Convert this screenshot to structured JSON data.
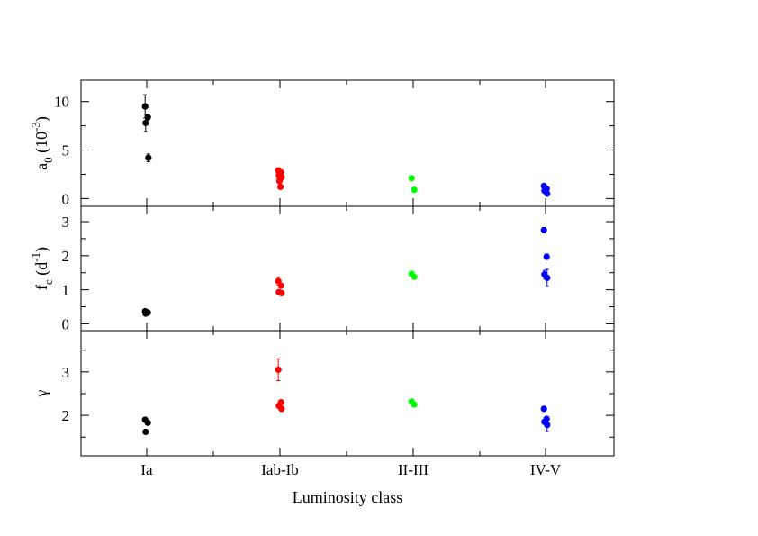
{
  "chart_data": [
    {
      "type": "scatter",
      "id": "a0",
      "ylabel": {
        "base": "a",
        "sub": "0",
        "unit_prefix": " (10",
        "unit_sup": "-3",
        "unit_suffix": ")"
      },
      "ylim": [
        -0.8,
        12.2
      ],
      "yticks_major": [
        0,
        5,
        10
      ],
      "yticks_minor": [
        2.5,
        7.5
      ],
      "series": [
        {
          "category": "Ia",
          "color": "#000000",
          "points": [
            {
              "y": 9.5,
              "err": 1.2
            },
            {
              "y": 8.4,
              "err": 0.3
            },
            {
              "y": 7.8,
              "err": 0.9
            },
            {
              "y": 4.2,
              "err": 0.4
            }
          ]
        },
        {
          "category": "Iab-Ib",
          "color": "#ff0000",
          "points": [
            {
              "y": 2.9,
              "err": 0.1
            },
            {
              "y": 2.7,
              "err": 0.1
            },
            {
              "y": 2.4,
              "err": 0.1
            },
            {
              "y": 2.2,
              "err": 0.1
            },
            {
              "y": 2.0,
              "err": 0.1
            },
            {
              "y": 1.8,
              "err": 0.1
            },
            {
              "y": 1.2,
              "err": 0.1
            }
          ]
        },
        {
          "category": "II-III",
          "color": "#00ff00",
          "points": [
            {
              "y": 2.1,
              "err": 0.1
            },
            {
              "y": 0.9,
              "err": 0.1
            }
          ]
        },
        {
          "category": "IV-V",
          "color": "#0000ff",
          "points": [
            {
              "y": 1.3,
              "err": 0.1
            },
            {
              "y": 1.0,
              "err": 0.1
            },
            {
              "y": 0.8,
              "err": 0.1
            },
            {
              "y": 0.5,
              "err": 0.1
            }
          ]
        }
      ]
    },
    {
      "type": "scatter",
      "id": "fc",
      "ylabel": {
        "base": "f",
        "sub": "c",
        "unit_prefix": " (d",
        "unit_sup": "-1",
        "unit_suffix": ")"
      },
      "ylim": [
        -0.2,
        3.45
      ],
      "yticks_major": [
        0,
        1,
        2,
        3
      ],
      "yticks_minor": [
        0.5,
        1.5,
        2.5
      ],
      "series": [
        {
          "category": "Ia",
          "color": "#000000",
          "points": [
            {
              "y": 0.37,
              "err": 0.05
            },
            {
              "y": 0.33,
              "err": 0.05
            },
            {
              "y": 0.3,
              "err": 0.05
            }
          ]
        },
        {
          "category": "Iab-Ib",
          "color": "#ff0000",
          "points": [
            {
              "y": 1.25,
              "err": 0.12
            },
            {
              "y": 1.12,
              "err": 0.05
            },
            {
              "y": 0.93,
              "err": 0.05
            },
            {
              "y": 0.9,
              "err": 0.05
            }
          ]
        },
        {
          "category": "II-III",
          "color": "#00ff00",
          "points": [
            {
              "y": 1.47,
              "err": 0.05
            },
            {
              "y": 1.38,
              "err": 0.05
            }
          ]
        },
        {
          "category": "IV-V",
          "color": "#0000ff",
          "points": [
            {
              "y": 2.75,
              "err": 0.08
            },
            {
              "y": 1.97,
              "err": 0.08
            },
            {
              "y": 1.45,
              "err": 0.12
            },
            {
              "y": 1.35,
              "err": 0.25
            }
          ]
        }
      ]
    },
    {
      "type": "scatter",
      "id": "gamma",
      "ylabel": {
        "base": "γ"
      },
      "ylim": [
        1.07,
        3.95
      ],
      "yticks_major": [
        2,
        3
      ],
      "yticks_minor": [
        1.5,
        2.5,
        3.5
      ],
      "series": [
        {
          "category": "Ia",
          "color": "#000000",
          "points": [
            {
              "y": 1.9,
              "err": 0.03
            },
            {
              "y": 1.83,
              "err": 0.03
            },
            {
              "y": 1.62,
              "err": 0.03
            }
          ]
        },
        {
          "category": "Iab-Ib",
          "color": "#ff0000",
          "points": [
            {
              "y": 3.05,
              "err": 0.25
            },
            {
              "y": 2.3,
              "err": 0.05
            },
            {
              "y": 2.22,
              "err": 0.05
            },
            {
              "y": 2.15,
              "err": 0.05
            }
          ]
        },
        {
          "category": "II-III",
          "color": "#00ff00",
          "points": [
            {
              "y": 2.32,
              "err": 0.04
            },
            {
              "y": 2.25,
              "err": 0.04
            }
          ]
        },
        {
          "category": "IV-V",
          "color": "#0000ff",
          "points": [
            {
              "y": 2.15,
              "err": 0.04
            },
            {
              "y": 1.92,
              "err": 0.05
            },
            {
              "y": 1.85,
              "err": 0.05
            },
            {
              "y": 1.78,
              "err": 0.15
            }
          ]
        }
      ]
    }
  ],
  "categories": [
    "Ia",
    "Iab-Ib",
    "II-III",
    "IV-V"
  ],
  "xlabel": "Luminosity class"
}
